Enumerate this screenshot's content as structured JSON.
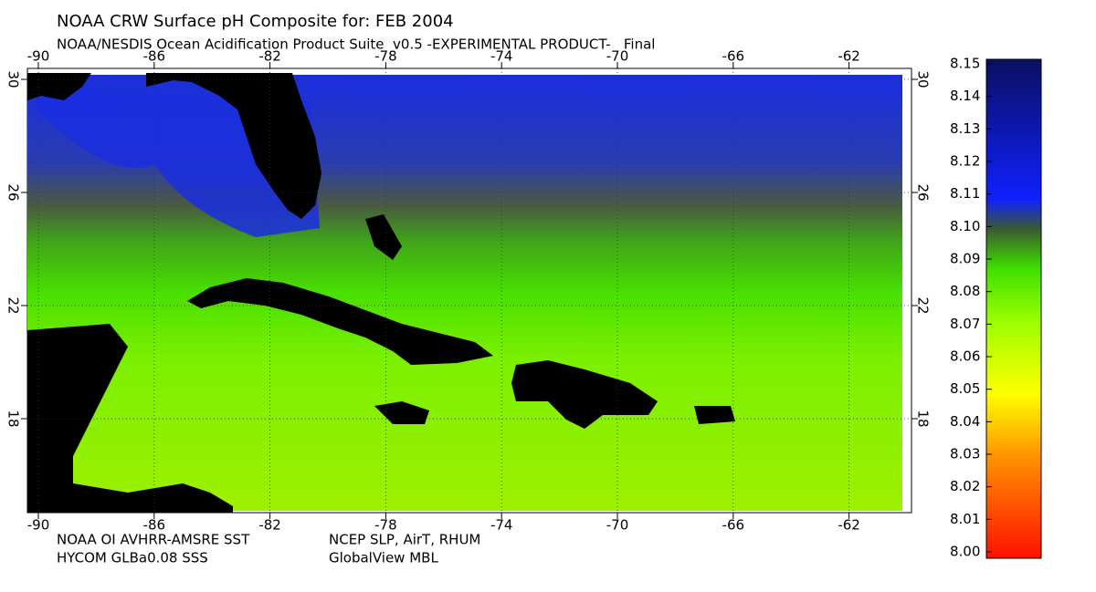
{
  "header": {
    "title": "NOAA CRW Surface pH Composite for: FEB 2004",
    "subtitle": "NOAA/NESDIS Ocean Acidification Product Suite  v0.5 -EXPERIMENTAL PRODUCT-   Final"
  },
  "map": {
    "lon_ticks": [
      -90,
      -86,
      -82,
      -78,
      -74,
      -70,
      -66,
      -62
    ],
    "lat_ticks": [
      30,
      26,
      22,
      18
    ]
  },
  "footnotes": [
    "NOAA OI AVHRR-AMSRE SST",
    "NCEP SLP, AirT, RHUM",
    "HYCOM GLBa0.08 SSS",
    "GlobalView MBL"
  ],
  "colorbar": {
    "ticks": [
      {
        "value": 8.15,
        "label": "8.15"
      },
      {
        "value": 8.14,
        "label": "8.14"
      },
      {
        "value": 8.13,
        "label": "8.13"
      },
      {
        "value": 8.12,
        "label": "8.12"
      },
      {
        "value": 8.11,
        "label": "8.11"
      },
      {
        "value": 8.1,
        "label": "8.10"
      },
      {
        "value": 8.09,
        "label": "8.09"
      },
      {
        "value": 8.08,
        "label": "8.08"
      },
      {
        "value": 8.07,
        "label": "8.07"
      },
      {
        "value": 8.06,
        "label": "8.06"
      },
      {
        "value": 8.05,
        "label": "8.05"
      },
      {
        "value": 8.04,
        "label": "8.04"
      },
      {
        "value": 8.03,
        "label": "8.03"
      },
      {
        "value": 8.02,
        "label": "8.02"
      },
      {
        "value": 8.01,
        "label": "8.01"
      },
      {
        "value": 8.0,
        "label": "8.00"
      }
    ]
  }
}
